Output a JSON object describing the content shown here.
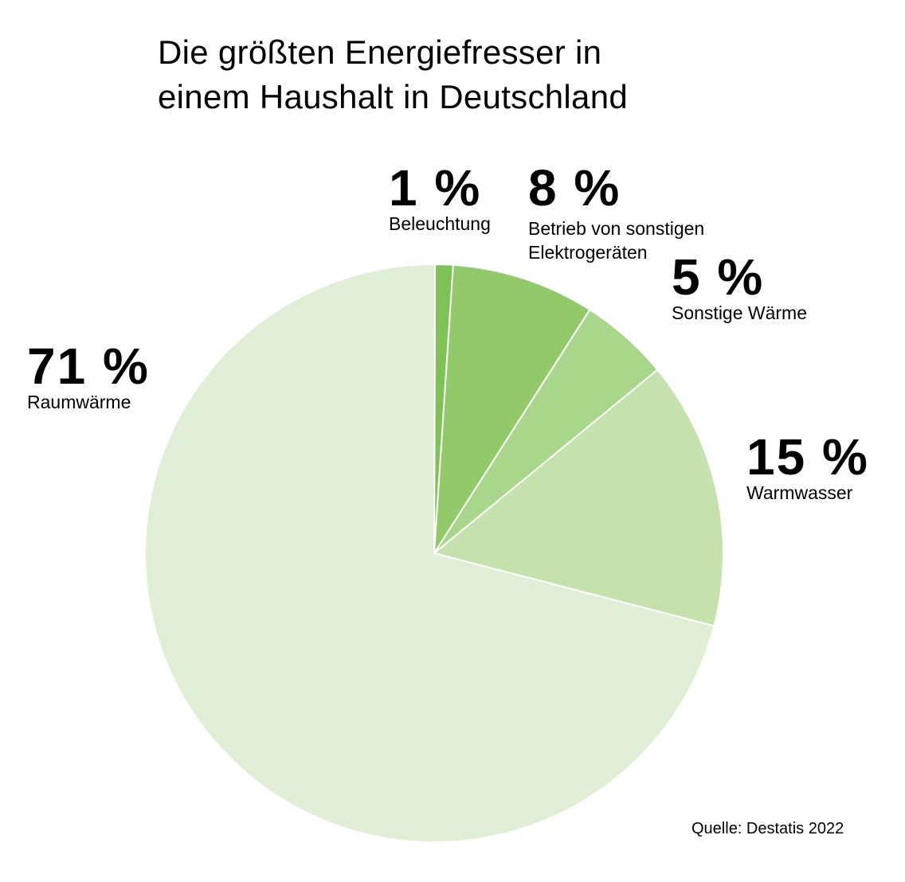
{
  "chart_data": {
    "type": "pie",
    "title": [
      "Die größten Energiefresser in",
      "einem Haushalt in Deutschland"
    ],
    "source": "Quelle: Destatis 2022",
    "unit": "%",
    "slices": [
      {
        "label": "Beleuchtung",
        "value": 1,
        "value_label": "1 %",
        "color": "#7cc255"
      },
      {
        "label": "Betrieb von sonstigen\nElektrogeräten",
        "value": 8,
        "value_label": "8 %",
        "color": "#92ca69"
      },
      {
        "label": "Sonstige Wärme",
        "value": 5,
        "value_label": "5 %",
        "color": "#aad68c"
      },
      {
        "label": "Warmwasser",
        "value": 15,
        "value_label": "15 %",
        "color": "#c5e1ae"
      },
      {
        "label": "Raumwärme",
        "value": 71,
        "value_label": "71 %",
        "color": "#e0eed5"
      }
    ]
  }
}
